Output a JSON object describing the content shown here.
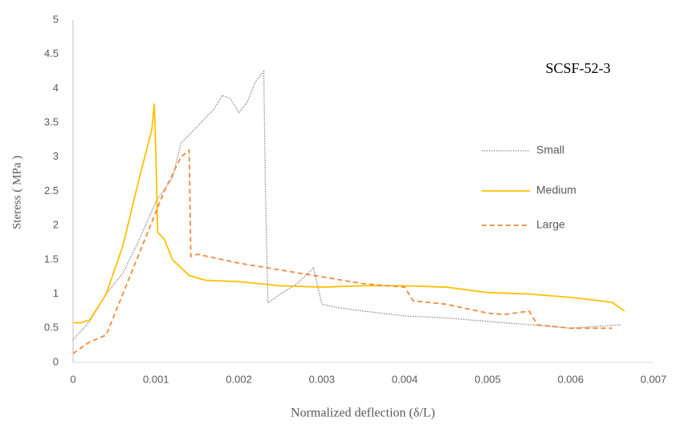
{
  "chart_data": {
    "type": "line",
    "annotation": "SCSF-52-3",
    "x_label": "Normalized deflection (δ/L)",
    "y_label": "Steress ( MPa )",
    "xlim": [
      0,
      0.007
    ],
    "xticks": [
      0,
      0.001,
      0.002,
      0.003,
      0.004,
      0.005,
      0.006,
      0.007
    ],
    "ylim": [
      0,
      5
    ],
    "yticks": [
      0,
      0.5,
      1,
      1.5,
      2,
      2.5,
      3,
      3.5,
      4,
      4.5,
      5
    ],
    "grid": false,
    "legend": "right",
    "series": [
      {
        "name": "Small",
        "color": "#8c8c8c",
        "dash": "dotted",
        "x": [
          0,
          0.0002,
          0.0004,
          0.0006,
          0.0008,
          0.001,
          0.0012,
          0.0013,
          0.0015,
          0.0017,
          0.0018,
          0.0019,
          0.002,
          0.0021,
          0.0022,
          0.0023,
          0.00232,
          0.00235,
          0.0025,
          0.0027,
          0.0029,
          0.003,
          0.0032,
          0.0035,
          0.004,
          0.0045,
          0.005,
          0.0055,
          0.006,
          0.0066
        ],
        "values": [
          0.33,
          0.6,
          1.0,
          1.3,
          1.8,
          2.35,
          2.7,
          3.2,
          3.45,
          3.7,
          3.9,
          3.85,
          3.65,
          3.8,
          4.1,
          4.25,
          2.5,
          0.87,
          1.0,
          1.15,
          1.38,
          0.85,
          0.8,
          0.75,
          0.68,
          0.65,
          0.6,
          0.55,
          0.5,
          0.55
        ]
      },
      {
        "name": "Medium",
        "color": "#ffc000",
        "dash": "solid",
        "x": [
          0,
          0.0001,
          0.0002,
          0.0004,
          0.0006,
          0.0008,
          0.00095,
          0.00098,
          0.001,
          0.00102,
          0.0011,
          0.0012,
          0.0014,
          0.0016,
          0.002,
          0.0025,
          0.003,
          0.0035,
          0.004,
          0.0045,
          0.005,
          0.0055,
          0.006,
          0.0065,
          0.00665
        ],
        "values": [
          0.58,
          0.58,
          0.62,
          1.0,
          1.7,
          2.7,
          3.4,
          3.78,
          3.0,
          1.9,
          1.8,
          1.5,
          1.27,
          1.2,
          1.18,
          1.12,
          1.1,
          1.12,
          1.12,
          1.1,
          1.02,
          1.0,
          0.95,
          0.88,
          0.75
        ]
      },
      {
        "name": "Large",
        "color": "#f4893a",
        "dash": "dashed",
        "x": [
          0,
          0.0002,
          0.0004,
          0.0005,
          0.0007,
          0.0009,
          0.0011,
          0.0013,
          0.0014,
          0.00142,
          0.0015,
          0.002,
          0.0025,
          0.003,
          0.0035,
          0.004,
          0.0041,
          0.0045,
          0.005,
          0.0052,
          0.0055,
          0.0056,
          0.006,
          0.0065
        ],
        "values": [
          0.13,
          0.3,
          0.4,
          0.7,
          1.3,
          1.9,
          2.5,
          3.0,
          3.1,
          1.55,
          1.58,
          1.45,
          1.35,
          1.25,
          1.15,
          1.1,
          0.9,
          0.85,
          0.72,
          0.7,
          0.75,
          0.55,
          0.5,
          0.5
        ]
      }
    ]
  }
}
